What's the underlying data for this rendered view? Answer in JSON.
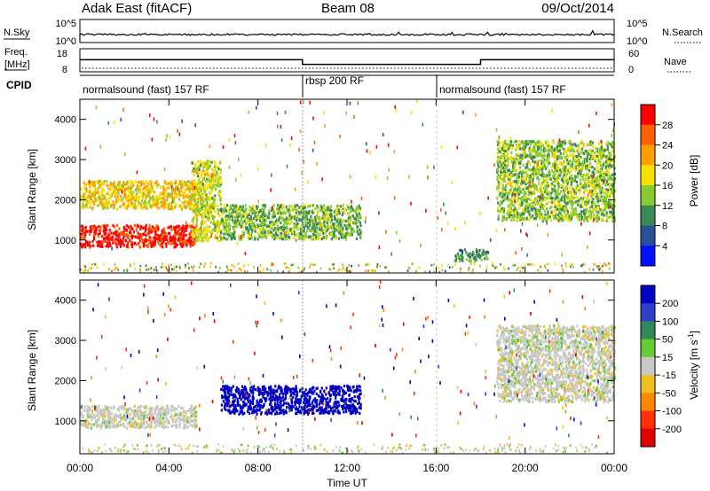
{
  "header": {
    "station": "Adak East (fitACF)",
    "beam": "Beam 08",
    "date": "09/Oct/2014"
  },
  "summary_panels": {
    "nsky_label": "N.Sky",
    "nsearch_label": "N.Search",
    "nsky_ticks": [
      "10^5",
      "10^0"
    ],
    "nsearch_ticks": [
      "10^5",
      "10^0"
    ],
    "freq_label_line1": "Freq.",
    "freq_label_line2": "[MHz]",
    "freq_ticks": [
      "18",
      "8"
    ],
    "nave_label": "Nave",
    "nave_ticks": [
      "60",
      "0"
    ],
    "cpid_label": "CPID",
    "cpid_segments": [
      {
        "label": "normalsound (fast) 157 RF",
        "start_h": 0,
        "end_h": 10
      },
      {
        "label": "rbsp 200 RF",
        "start_h": 10,
        "end_h": 16
      },
      {
        "label": "normalsound (fast) 157 RF",
        "start_h": 16,
        "end_h": 24
      }
    ],
    "freq_series": {
      "x_hours": [
        0,
        10,
        10,
        18,
        18,
        24
      ],
      "values_mhz": [
        14,
        14,
        12,
        12,
        14,
        14
      ]
    },
    "nave_series": {
      "x_hours": [
        0,
        24
      ],
      "values": [
        1,
        1
      ]
    }
  },
  "chart_data": [
    {
      "type": "heatmap",
      "name": "power",
      "xlabel": "",
      "ylabel": "Slant Range [km]",
      "xlim_hours": [
        0,
        24
      ],
      "ylim_km": [
        180,
        4500
      ],
      "x_ticks": [
        "00:00",
        "04:00",
        "08:00",
        "12:00",
        "16:00",
        "20:00",
        "00:00"
      ],
      "y_ticks": [
        1000,
        2000,
        3000,
        4000
      ],
      "colorbar": {
        "label": "Power [dB]",
        "ticks": [
          "28",
          "24",
          "20",
          "16",
          "12",
          "8",
          "4"
        ],
        "colors": [
          "#ff0000",
          "#ff6000",
          "#ffa000",
          "#f8e000",
          "#88cc33",
          "#3a8a55",
          "#2a4f9a",
          "#0010ff"
        ]
      },
      "regions": [
        {
          "x_hours": [
            0.0,
            5.2
          ],
          "y_km": [
            850,
            1400
          ],
          "value_db": 28
        },
        {
          "x_hours": [
            0.0,
            5.5
          ],
          "y_km": [
            1800,
            2500
          ],
          "value_db": 17
        },
        {
          "x_hours": [
            5.0,
            6.3
          ],
          "y_km": [
            1000,
            3000
          ],
          "value_db": 14
        },
        {
          "x_hours": [
            6.3,
            12.6
          ],
          "y_km": [
            1050,
            1900
          ],
          "value_db": 11
        },
        {
          "x_hours": [
            16.8,
            18.3
          ],
          "y_km": [
            500,
            800
          ],
          "value_db": 9
        },
        {
          "x_hours": [
            18.7,
            24.0
          ],
          "y_km": [
            1500,
            3500
          ],
          "value_db": 12
        }
      ],
      "annotations": {
        "gaps_hours": [
          10,
          16
        ]
      }
    },
    {
      "type": "heatmap",
      "name": "velocity",
      "xlabel": "Time UT",
      "ylabel": "Slant Range [km]",
      "xlim_hours": [
        0,
        24
      ],
      "ylim_km": [
        180,
        4500
      ],
      "x_ticks": [
        "00:00",
        "04:00",
        "08:00",
        "12:00",
        "16:00",
        "20:00",
        "00:00"
      ],
      "y_ticks": [
        1000,
        2000,
        3000,
        4000
      ],
      "colorbar": {
        "label": "Velocity [m s",
        "label_superscript": "-1",
        "label_close": "]",
        "ticks": [
          "200",
          "100",
          "50",
          "15",
          "-15",
          "-50",
          "-100",
          "-200"
        ],
        "colors": [
          "#0000c0",
          "#3040c8",
          "#2f8a58",
          "#66cc33",
          "#c8c8c8",
          "#f0c020",
          "#ff8800",
          "#ff3000",
          "#e00000"
        ]
      },
      "regions": [
        {
          "x_hours": [
            0.0,
            5.2
          ],
          "y_km": [
            850,
            1400
          ],
          "value_ms": 0
        },
        {
          "x_hours": [
            6.3,
            12.6
          ],
          "y_km": [
            1200,
            1900
          ],
          "value_ms": 250
        },
        {
          "x_hours": [
            18.7,
            24.0
          ],
          "y_km": [
            1500,
            3400
          ],
          "value_ms": 0
        }
      ]
    }
  ]
}
